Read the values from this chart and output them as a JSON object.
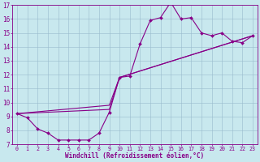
{
  "xlabel": "Windchill (Refroidissement éolien,°C)",
  "bg_color": "#c8e8ee",
  "line_color": "#880088",
  "markersize": 2.0,
  "linewidth": 0.8,
  "xlim_min": -0.5,
  "xlim_max": 23.5,
  "ylim_min": 7,
  "ylim_max": 17,
  "yticks": [
    7,
    8,
    9,
    10,
    11,
    12,
    13,
    14,
    15,
    16,
    17
  ],
  "xticks": [
    0,
    1,
    2,
    3,
    4,
    5,
    6,
    7,
    8,
    9,
    10,
    11,
    12,
    13,
    14,
    15,
    16,
    17,
    18,
    19,
    20,
    21,
    22,
    23
  ],
  "series1_x": [
    0,
    1,
    2,
    3,
    4,
    5,
    6,
    7,
    8,
    9,
    10,
    11,
    12,
    13,
    14,
    15,
    16,
    17,
    18,
    19,
    20,
    21,
    22,
    23
  ],
  "series1_y": [
    9.2,
    8.9,
    8.1,
    7.8,
    7.3,
    7.3,
    7.3,
    7.3,
    7.8,
    9.3,
    11.8,
    11.9,
    14.2,
    15.9,
    16.1,
    17.2,
    16.0,
    16.1,
    15.0,
    14.8,
    15.0,
    14.4,
    14.3,
    14.8
  ],
  "series2_x": [
    0,
    9,
    10,
    23
  ],
  "series2_y": [
    9.2,
    9.8,
    11.8,
    14.8
  ],
  "series3_x": [
    0,
    9,
    10,
    23
  ],
  "series3_y": [
    9.2,
    9.5,
    11.8,
    14.8
  ],
  "grid_color": "#99bbcc",
  "tick_fontsize": 5.5,
  "xlabel_fontsize": 5.5
}
